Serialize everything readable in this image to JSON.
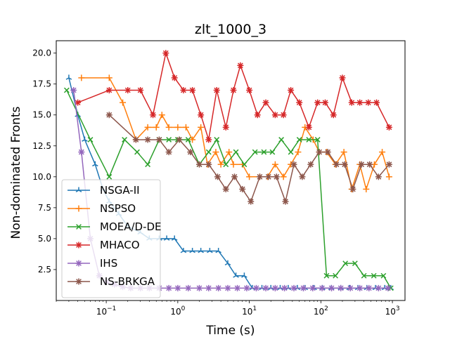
{
  "chart_data": {
    "type": "line",
    "title": "zlt_1000_3",
    "xlabel": "Time (s)",
    "ylabel": "Non-dominated Fronts",
    "xscale": "log",
    "xlim": [
      0.02,
      1500
    ],
    "ylim": [
      0.0,
      21.0
    ],
    "yticks": [
      2.5,
      5.0,
      7.5,
      10.0,
      12.5,
      15.0,
      17.5,
      20.0
    ],
    "ytick_labels": [
      "2.5",
      "5.0",
      "7.5",
      "10.0",
      "12.5",
      "15.0",
      "17.5",
      "20.0"
    ],
    "xticks": [
      0.1,
      1,
      10,
      100,
      1000
    ],
    "xtick_labels": [
      {
        "base": "10",
        "exp": "−1"
      },
      {
        "base": "10",
        "exp": "0"
      },
      {
        "base": "10",
        "exp": "1"
      },
      {
        "base": "10",
        "exp": "2"
      },
      {
        "base": "10",
        "exp": "3"
      }
    ],
    "grid": false,
    "legend_position": "lower-left",
    "series": [
      {
        "name": "NSGA-II",
        "color": "#1f77b4",
        "marker": "tri",
        "x": [
          0.03,
          0.04,
          0.05,
          0.07,
          0.09,
          0.11,
          0.15,
          0.2,
          0.3,
          0.4,
          0.55,
          0.7,
          0.9,
          1.2,
          1.6,
          2.1,
          2.8,
          3.7,
          5,
          6.5,
          8.5,
          11,
          15,
          20,
          27,
          35,
          47,
          60,
          80,
          105,
          140,
          190,
          250,
          330,
          440,
          580,
          780,
          950
        ],
        "y": [
          18,
          15,
          13,
          11,
          9,
          8,
          7,
          6,
          5.5,
          5,
          5,
          5,
          5,
          4,
          4,
          4,
          4,
          4,
          3,
          2,
          2,
          1,
          1,
          1,
          1,
          1,
          1,
          1,
          1,
          1,
          1,
          1,
          1,
          1,
          1,
          1,
          1,
          1
        ]
      },
      {
        "name": "NSPSO",
        "color": "#ff7f0e",
        "marker": "plus",
        "x": [
          0.045,
          0.11,
          0.17,
          0.26,
          0.38,
          0.5,
          0.6,
          0.75,
          1,
          1.3,
          1.6,
          2.1,
          2.6,
          3.4,
          4,
          5.2,
          6,
          8,
          10,
          14,
          18,
          23,
          30,
          38,
          48,
          60,
          78,
          95,
          120,
          160,
          210,
          270,
          350,
          430,
          560,
          720,
          900
        ],
        "y": [
          18,
          18,
          16,
          13,
          14,
          14,
          15,
          14,
          14,
          14,
          13,
          14,
          11,
          12,
          11,
          12,
          11,
          11,
          10,
          10,
          10,
          11,
          10,
          11,
          12,
          14,
          13,
          12,
          12,
          11,
          12,
          9,
          11,
          9,
          11,
          12,
          10
        ]
      },
      {
        "name": "MOEA/D-DE",
        "color": "#2ca02c",
        "marker": "x",
        "x": [
          0.028,
          0.06,
          0.11,
          0.18,
          0.27,
          0.38,
          0.55,
          0.75,
          1,
          1.4,
          2,
          2.7,
          3.5,
          4.7,
          6.5,
          8.5,
          12,
          16,
          21,
          28,
          38,
          50,
          68,
          90,
          120,
          160,
          220,
          300,
          400,
          550,
          750,
          950
        ],
        "y": [
          17,
          13,
          10,
          13,
          12,
          11,
          13,
          13,
          13,
          13,
          11,
          12,
          13,
          11,
          12,
          11,
          12,
          12,
          12,
          13,
          12,
          13,
          13,
          13,
          2,
          2,
          3,
          3,
          2,
          2,
          2,
          1
        ]
      },
      {
        "name": "MHACO",
        "color": "#d62728",
        "marker": "star",
        "x": [
          0.04,
          0.11,
          0.2,
          0.3,
          0.45,
          0.68,
          0.9,
          1.2,
          1.6,
          2.1,
          2.7,
          3.5,
          4.7,
          6,
          7.5,
          10,
          13,
          17,
          23,
          30,
          38,
          50,
          68,
          90,
          115,
          150,
          200,
          270,
          350,
          460,
          600,
          900
        ],
        "y": [
          16,
          17,
          17,
          17,
          15,
          20,
          18,
          17,
          17,
          15,
          13,
          17,
          14,
          17,
          19,
          17,
          15,
          16,
          15,
          15,
          17,
          16,
          14,
          16,
          16,
          15,
          18,
          16,
          16,
          16,
          16,
          14
        ]
      },
      {
        "name": "IHS",
        "color": "#9467bd",
        "marker": "star",
        "x": [
          0.035,
          0.045,
          0.06,
          0.08,
          0.1,
          0.13,
          0.17,
          0.22,
          0.3,
          0.4,
          0.55,
          0.75,
          1,
          1.4,
          2,
          2.7,
          3.7,
          5,
          6.8,
          9.2,
          12.5,
          17,
          23,
          31,
          42,
          57,
          77,
          104,
          141,
          190,
          258,
          350,
          470,
          640,
          870
        ],
        "y": [
          17,
          12,
          5,
          2,
          1.5,
          1.3,
          1.1,
          1,
          1,
          1,
          1,
          1,
          1,
          1,
          1,
          1,
          1,
          1,
          1,
          1,
          1,
          1,
          1,
          1,
          1,
          1,
          1,
          1,
          1,
          1,
          1,
          1,
          1,
          1,
          1
        ]
      },
      {
        "name": "NS-BRKGA",
        "color": "#8c564b",
        "marker": "star",
        "x": [
          0.11,
          0.26,
          0.38,
          0.55,
          0.75,
          1.05,
          1.5,
          2,
          2.7,
          3.6,
          4.7,
          6.2,
          8,
          10.5,
          14,
          18.5,
          24,
          32,
          42,
          55,
          72,
          95,
          125,
          165,
          215,
          280,
          370,
          480,
          640,
          900
        ],
        "y": [
          15,
          13,
          13,
          13,
          12,
          13,
          12,
          11,
          11,
          10,
          9,
          10,
          9,
          8,
          10,
          10,
          10,
          8,
          11,
          10,
          11,
          12,
          12,
          11,
          11,
          9,
          11,
          11,
          10,
          11
        ]
      }
    ]
  }
}
